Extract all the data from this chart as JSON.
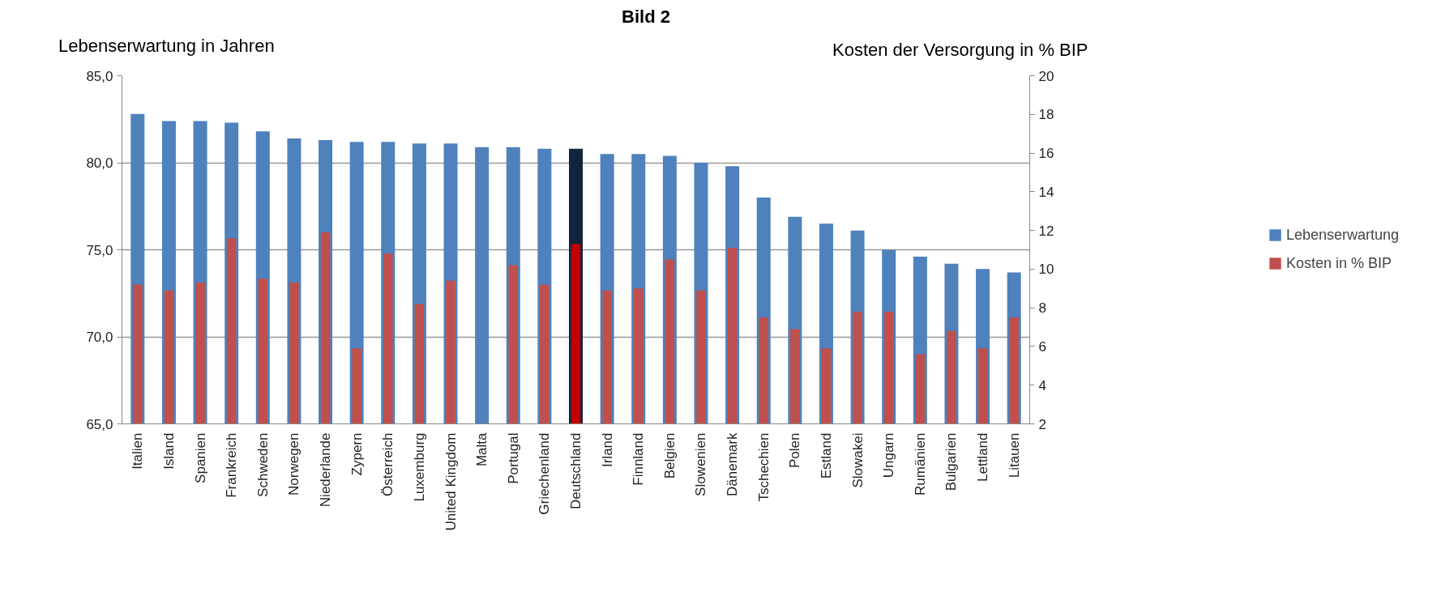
{
  "chart_data": {
    "type": "bar",
    "title": "Bild 2",
    "ylabel": "Lebenserwartung in Jahren",
    "y2label": "Kosten der Versorgung in % BIP",
    "categories": [
      "Italien",
      "Island",
      "Spanien",
      "Frankreich",
      "Schweden",
      "Norwegen",
      "Niederlande",
      "Zypern",
      "Österreich",
      "Luxemburg",
      "United Kingdom",
      "Malta",
      "Portugal",
      "Griechenland",
      "Deutschland",
      "Irland",
      "Finnland",
      "Belgien",
      "Slowenien",
      "Dänemark",
      "Tschechien",
      "Polen",
      "Estland",
      "Slowakei",
      "Ungarn",
      "Rumänien",
      "Bulgarien",
      "Lettland",
      "Litauen"
    ],
    "series": [
      {
        "name": "Lebenserwartung",
        "colors": [
          "#4f81bd",
          "#4f81bd",
          "#4f81bd",
          "#4f81bd",
          "#4f81bd",
          "#4f81bd",
          "#4f81bd",
          "#4f81bd",
          "#4f81bd",
          "#4f81bd",
          "#4f81bd",
          "#4f81bd",
          "#4f81bd",
          "#4f81bd",
          "#10243e",
          "#4f81bd",
          "#4f81bd",
          "#4f81bd",
          "#4f81bd",
          "#4f81bd",
          "#4f81bd",
          "#4f81bd",
          "#4f81bd",
          "#4f81bd",
          "#4f81bd",
          "#4f81bd",
          "#4f81bd",
          "#4f81bd",
          "#4f81bd"
        ],
        "values": [
          82.8,
          82.4,
          82.4,
          82.3,
          81.8,
          81.4,
          81.3,
          81.2,
          81.2,
          81.1,
          81.1,
          80.9,
          80.9,
          80.8,
          80.8,
          80.5,
          80.5,
          80.4,
          80.0,
          79.8,
          78.0,
          76.9,
          76.5,
          76.1,
          75.0,
          74.6,
          74.2,
          73.9,
          73.7
        ]
      },
      {
        "name": "Kosten in % BIP",
        "axis": "y2",
        "colors": [
          "#c0504d",
          "#c0504d",
          "#c0504d",
          "#c0504d",
          "#c0504d",
          "#c0504d",
          "#c0504d",
          "#c0504d",
          "#c0504d",
          "#c0504d",
          "#c0504d",
          "#c0504d",
          "#c0504d",
          "#c0504d",
          "#c00000",
          "#c0504d",
          "#c0504d",
          "#c0504d",
          "#c0504d",
          "#c0504d",
          "#c0504d",
          "#c0504d",
          "#c0504d",
          "#c0504d",
          "#c0504d",
          "#c0504d",
          "#c0504d",
          "#c0504d",
          "#c0504d"
        ],
        "values": [
          9.2,
          8.9,
          9.3,
          11.6,
          9.5,
          9.3,
          11.9,
          5.9,
          10.8,
          8.2,
          9.4,
          null,
          10.2,
          9.2,
          11.3,
          8.9,
          9.0,
          10.5,
          8.9,
          11.1,
          7.5,
          6.9,
          5.9,
          7.8,
          7.8,
          5.6,
          6.8,
          5.9,
          7.5
        ]
      }
    ],
    "ylim": [
      65,
      85
    ],
    "yticks": [
      {
        "value": 65,
        "label": "65,0"
      },
      {
        "value": 70,
        "label": "70,0"
      },
      {
        "value": 75,
        "label": "75,0"
      },
      {
        "value": 80,
        "label": "80,0"
      },
      {
        "value": 85,
        "label": "85,0"
      }
    ],
    "y2lim": [
      2,
      20
    ],
    "y2ticks": [
      2,
      4,
      6,
      8,
      10,
      12,
      14,
      16,
      18,
      20
    ],
    "grid": "y",
    "legend": "right"
  }
}
